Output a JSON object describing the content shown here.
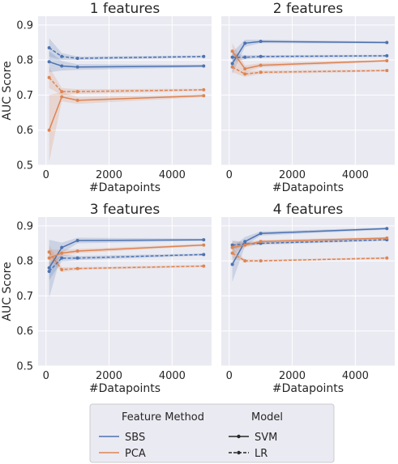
{
  "colors": {
    "SBS": "#4c72b0",
    "PCA": "#dd8452",
    "panel_bg": "#eaeaf2",
    "grid": "#ffffff",
    "text": "#262626"
  },
  "legend": {
    "title_method": "Feature Method",
    "title_model": "Model",
    "methods": [
      "SBS",
      "PCA"
    ],
    "models": [
      "SVM",
      "LR"
    ]
  },
  "chart_data": {
    "type": "line",
    "xlabel": "#Datapoints",
    "ylabel": "AUC Score",
    "xlim": [
      -250,
      5250
    ],
    "ylim": [
      0.5,
      0.925
    ],
    "xticks": [
      0,
      2000,
      4000
    ],
    "xtick_labels": [
      "0",
      "2000",
      "4000"
    ],
    "yticks": [
      0.5,
      0.6,
      0.7,
      0.8,
      0.9
    ],
    "ytick_labels": [
      "0.5",
      "0.6",
      "0.7",
      "0.8",
      "0.9"
    ],
    "x": [
      100,
      500,
      1000,
      5000
    ],
    "panels": [
      {
        "title": "1 features",
        "series": [
          {
            "method": "SBS",
            "model": "SVM",
            "values": [
              0.795,
              0.783,
              0.78,
              0.783
            ],
            "lower": [
              0.765,
              0.77,
              0.772,
              0.779
            ],
            "upper": [
              0.825,
              0.797,
              0.788,
              0.787
            ]
          },
          {
            "method": "SBS",
            "model": "LR",
            "values": [
              0.835,
              0.81,
              0.805,
              0.81
            ],
            "lower": [
              0.81,
              0.8,
              0.8,
              0.807
            ],
            "upper": [
              0.862,
              0.82,
              0.81,
              0.813
            ]
          },
          {
            "method": "PCA",
            "model": "SVM",
            "values": [
              0.6,
              0.695,
              0.685,
              0.698
            ],
            "lower": [
              0.51,
              0.682,
              0.675,
              0.694
            ],
            "upper": [
              0.7,
              0.708,
              0.695,
              0.702
            ]
          },
          {
            "method": "PCA",
            "model": "LR",
            "values": [
              0.75,
              0.71,
              0.71,
              0.715
            ],
            "lower": [
              0.72,
              0.7,
              0.703,
              0.712
            ],
            "upper": [
              0.78,
              0.72,
              0.717,
              0.718
            ]
          }
        ]
      },
      {
        "title": "2 features",
        "series": [
          {
            "method": "SBS",
            "model": "SVM",
            "values": [
              0.79,
              0.848,
              0.853,
              0.85
            ],
            "lower": [
              0.76,
              0.838,
              0.848,
              0.847
            ],
            "upper": [
              0.822,
              0.858,
              0.858,
              0.853
            ]
          },
          {
            "method": "SBS",
            "model": "LR",
            "values": [
              0.808,
              0.808,
              0.81,
              0.812
            ],
            "lower": [
              0.795,
              0.802,
              0.806,
              0.809
            ],
            "upper": [
              0.82,
              0.814,
              0.814,
              0.815
            ]
          },
          {
            "method": "PCA",
            "model": "SVM",
            "values": [
              0.825,
              0.775,
              0.785,
              0.798
            ],
            "lower": [
              0.8,
              0.765,
              0.779,
              0.795
            ],
            "upper": [
              0.848,
              0.785,
              0.791,
              0.801
            ]
          },
          {
            "method": "PCA",
            "model": "LR",
            "values": [
              0.78,
              0.76,
              0.765,
              0.77
            ],
            "lower": [
              0.765,
              0.752,
              0.76,
              0.767
            ],
            "upper": [
              0.795,
              0.768,
              0.77,
              0.773
            ]
          }
        ]
      },
      {
        "title": "3 features",
        "series": [
          {
            "method": "SBS",
            "model": "SVM",
            "values": [
              0.78,
              0.838,
              0.858,
              0.86
            ],
            "lower": [
              0.695,
              0.822,
              0.85,
              0.857
            ],
            "upper": [
              0.86,
              0.852,
              0.866,
              0.863
            ]
          },
          {
            "method": "SBS",
            "model": "LR",
            "values": [
              0.77,
              0.808,
              0.808,
              0.818
            ],
            "lower": [
              0.745,
              0.798,
              0.802,
              0.815
            ],
            "upper": [
              0.795,
              0.818,
              0.814,
              0.821
            ]
          },
          {
            "method": "PCA",
            "model": "SVM",
            "values": [
              0.808,
              0.822,
              0.828,
              0.845
            ],
            "lower": [
              0.785,
              0.812,
              0.822,
              0.842
            ],
            "upper": [
              0.832,
              0.832,
              0.834,
              0.848
            ]
          },
          {
            "method": "PCA",
            "model": "LR",
            "values": [
              0.825,
              0.775,
              0.778,
              0.785
            ],
            "lower": [
              0.805,
              0.768,
              0.774,
              0.782
            ],
            "upper": [
              0.845,
              0.782,
              0.782,
              0.788
            ]
          }
        ]
      },
      {
        "title": "4 features",
        "series": [
          {
            "method": "SBS",
            "model": "SVM",
            "values": [
              0.79,
              0.855,
              0.878,
              0.892
            ],
            "lower": [
              0.74,
              0.842,
              0.872,
              0.889
            ],
            "upper": [
              0.84,
              0.868,
              0.884,
              0.895
            ]
          },
          {
            "method": "SBS",
            "model": "LR",
            "values": [
              0.845,
              0.848,
              0.85,
              0.86
            ],
            "lower": [
              0.832,
              0.842,
              0.846,
              0.857
            ],
            "upper": [
              0.858,
              0.854,
              0.854,
              0.863
            ]
          },
          {
            "method": "PCA",
            "model": "SVM",
            "values": [
              0.838,
              0.845,
              0.855,
              0.865
            ],
            "lower": [
              0.82,
              0.838,
              0.85,
              0.862
            ],
            "upper": [
              0.856,
              0.852,
              0.86,
              0.868
            ]
          },
          {
            "method": "PCA",
            "model": "LR",
            "values": [
              0.822,
              0.8,
              0.8,
              0.808
            ],
            "lower": [
              0.808,
              0.795,
              0.797,
              0.805
            ],
            "upper": [
              0.836,
              0.805,
              0.803,
              0.811
            ]
          }
        ]
      }
    ]
  }
}
